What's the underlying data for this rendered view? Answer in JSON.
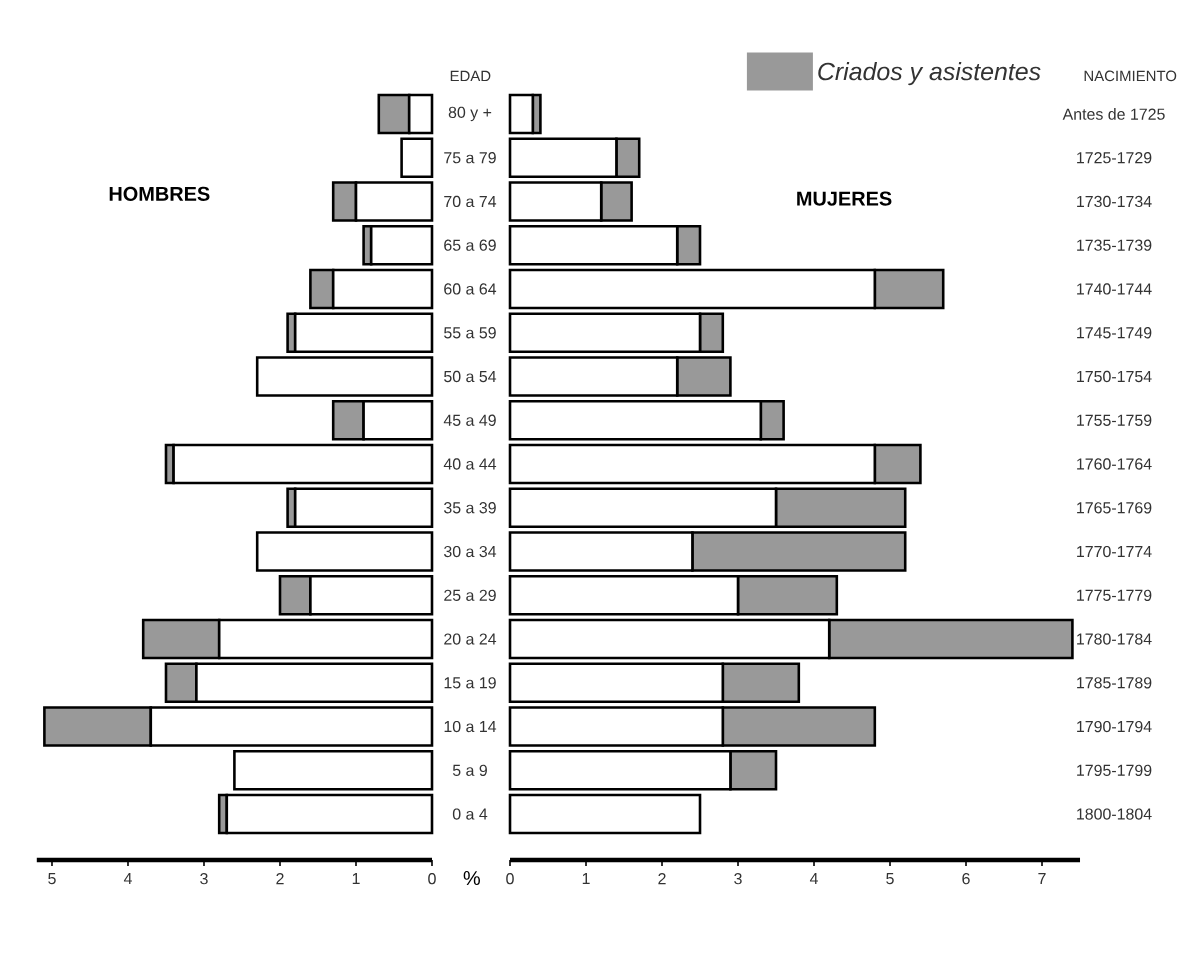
{
  "chart_data": [
    {
      "type": "bar",
      "orientation": "horizontal",
      "stacked": true,
      "title": "HOMBRES",
      "ylabel": "EDAD",
      "categories": [
        "80 y +",
        "75 a 79",
        "70 a 74",
        "65 a 69",
        "60 a 64",
        "55 a 59",
        "50 a 54",
        "45 a 49",
        "40 a 44",
        "35 a 39",
        "30 a 34",
        "25 a 29",
        "20 a 24",
        "15 a 19",
        "10 a 14",
        "5 a 9",
        "0 a 4"
      ],
      "xlim": [
        5.2,
        0
      ],
      "xticks": [
        5,
        4,
        3,
        2,
        1,
        0
      ],
      "series": [
        {
          "color": "#ffffff",
          "values": [
            0.3,
            0.4,
            1.0,
            0.8,
            1.3,
            1.8,
            2.3,
            0.9,
            3.4,
            1.8,
            2.3,
            1.6,
            2.8,
            3.1,
            3.7,
            2.6,
            2.7
          ]
        },
        {
          "color": "#999999",
          "values": [
            0.4,
            0,
            0.3,
            0.1,
            0.3,
            0.1,
            0,
            0.4,
            0.1,
            0.1,
            0,
            0.4,
            1.0,
            0.4,
            1.4,
            0,
            0.1
          ]
        }
      ]
    },
    {
      "type": "bar",
      "orientation": "horizontal",
      "stacked": true,
      "title": "MUJERES",
      "ylabel": "NACIMIENTO",
      "xlabel": "%",
      "categories": [
        "Antes de 1725",
        "1725-1729",
        "1730-1734",
        "1735-1739",
        "1740-1744",
        "1745-1749",
        "1750-1754",
        "1755-1759",
        "1760-1764",
        "1765-1769",
        "1770-1774",
        "1775-1779",
        "1780-1784",
        "1785-1789",
        "1790-1794",
        "1795-1799",
        "1800-1804"
      ],
      "xlim": [
        0,
        7.5
      ],
      "xticks": [
        0,
        1,
        2,
        3,
        4,
        5,
        6,
        7
      ],
      "legend": "top right",
      "series": [
        {
          "color": "#ffffff",
          "values": [
            0.3,
            1.4,
            1.2,
            2.2,
            4.8,
            2.5,
            2.2,
            3.3,
            4.8,
            3.5,
            2.4,
            3.0,
            4.2,
            2.8,
            2.8,
            2.9,
            2.5
          ]
        },
        {
          "name": "Criados y asistentes",
          "color": "#999999",
          "values": [
            0.1,
            0.3,
            0.4,
            0.3,
            0.9,
            0.3,
            0.7,
            0.3,
            0.6,
            1.7,
            2.8,
            1.3,
            3.2,
            1.0,
            2.0,
            0.6,
            0
          ]
        }
      ]
    }
  ]
}
